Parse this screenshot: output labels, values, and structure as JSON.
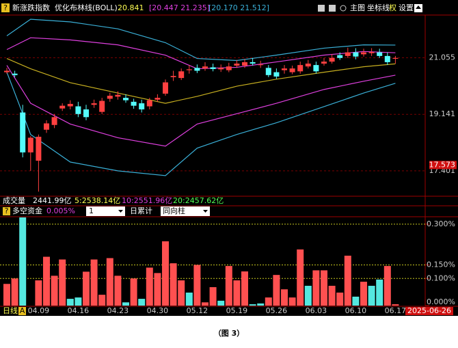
{
  "header": {
    "indicator_name": "新涨跌指数",
    "study": "优化布林线(BOLL)",
    "mid": "20.841",
    "inner_band": "[20.447  21.235]",
    "outer_band": "[20.170  21.512]",
    "menu": [
      "主图",
      "坐标线",
      "权",
      "设置"
    ]
  },
  "volume_row": {
    "label": "成交量",
    "total": "2441.99亿",
    "ma5": "5:2538.14亿",
    "ma10": "10:2551.96亿",
    "ma20": "20:2457.62亿"
  },
  "chart_data": [
    {
      "type": "candlestick",
      "log_scale": true,
      "ylim": [
        16.69,
        22.63
      ],
      "yticks": [
        21.055,
        19.141,
        17.401
      ],
      "price_marker": 17.573,
      "up_color": "#ff4040",
      "down_color": "#54fcfc",
      "ohlc": [
        [
          20.55,
          20.7,
          20.5,
          20.6
        ],
        [
          20.5,
          20.6,
          20.38,
          20.45
        ],
        [
          19.2,
          19.45,
          17.8,
          17.95
        ],
        [
          17.95,
          18.45,
          17.4,
          18.4
        ],
        [
          17.7,
          18.5,
          16.8,
          18.43
        ],
        [
          18.65,
          18.95,
          18.55,
          18.85
        ],
        [
          18.8,
          19.15,
          18.7,
          19.05
        ],
        [
          19.33,
          19.5,
          19.25,
          19.42
        ],
        [
          19.4,
          19.6,
          19.3,
          19.48
        ],
        [
          19.4,
          19.55,
          19.05,
          19.15
        ],
        [
          19.3,
          19.45,
          18.95,
          19.05
        ],
        [
          19.45,
          19.62,
          19.35,
          19.5
        ],
        [
          19.22,
          19.68,
          19.15,
          19.58
        ],
        [
          19.65,
          19.85,
          19.55,
          19.75
        ],
        [
          19.72,
          19.9,
          19.62,
          19.78
        ],
        [
          19.68,
          19.8,
          19.52,
          19.6
        ],
        [
          19.55,
          19.65,
          19.32,
          19.42
        ],
        [
          19.5,
          19.62,
          19.2,
          19.3
        ],
        [
          19.4,
          19.68,
          19.3,
          19.6
        ],
        [
          19.62,
          19.8,
          19.55,
          19.68
        ],
        [
          19.82,
          20.3,
          19.75,
          20.2
        ],
        [
          20.38,
          20.6,
          20.25,
          20.42
        ],
        [
          20.35,
          20.68,
          20.28,
          20.58
        ],
        [
          20.62,
          20.8,
          20.5,
          20.65
        ],
        [
          20.7,
          20.82,
          20.52,
          20.6
        ],
        [
          20.68,
          20.9,
          20.6,
          20.75
        ],
        [
          20.72,
          20.85,
          20.58,
          20.66
        ],
        [
          20.65,
          20.82,
          20.56,
          20.7
        ],
        [
          20.62,
          20.88,
          20.55,
          20.75
        ],
        [
          20.78,
          20.98,
          20.7,
          20.85
        ],
        [
          20.78,
          21.02,
          20.7,
          20.9
        ],
        [
          20.9,
          21.05,
          20.78,
          20.85
        ],
        [
          20.8,
          20.95,
          20.7,
          20.82
        ],
        [
          20.7,
          20.8,
          20.38,
          20.45
        ],
        [
          20.55,
          20.68,
          20.32,
          20.4
        ],
        [
          20.62,
          20.8,
          20.5,
          20.68
        ],
        [
          20.55,
          20.78,
          20.48,
          20.68
        ],
        [
          20.58,
          20.92,
          20.5,
          20.8
        ],
        [
          20.75,
          20.98,
          20.68,
          20.85
        ],
        [
          20.8,
          20.92,
          20.5,
          20.58
        ],
        [
          20.85,
          21.05,
          20.78,
          20.92
        ],
        [
          20.92,
          21.18,
          20.85,
          21.05
        ],
        [
          21.15,
          21.25,
          20.98,
          21.05
        ],
        [
          21.12,
          21.42,
          21.05,
          21.25
        ],
        [
          21.25,
          21.4,
          21.0,
          21.1
        ],
        [
          21.18,
          21.38,
          21.1,
          21.25
        ],
        [
          21.22,
          21.4,
          21.12,
          21.26
        ],
        [
          21.25,
          21.38,
          21.05,
          21.12
        ],
        [
          21.12,
          21.25,
          20.8,
          20.9
        ],
        [
          21.02,
          21.12,
          20.85,
          21.05
        ]
      ],
      "lines": [
        {
          "color": "#3ab0d8",
          "x": [
            0,
            3,
            8,
            14,
            20,
            24,
            29,
            34,
            40,
            45,
            49
          ],
          "values": [
            21.85,
            22.47,
            22.37,
            22.11,
            21.6,
            21.03,
            20.96,
            21.15,
            21.4,
            21.52,
            21.512
          ]
        },
        {
          "color": "#e040e0",
          "x": [
            0,
            3,
            8,
            14,
            20,
            24,
            29,
            34,
            40,
            45,
            49
          ],
          "values": [
            21.35,
            21.78,
            21.7,
            21.52,
            21.15,
            20.67,
            20.72,
            20.91,
            21.15,
            21.28,
            21.235
          ]
        },
        {
          "color": "#c8b020",
          "x": [
            0,
            3,
            8,
            14,
            20,
            24,
            29,
            34,
            40,
            45,
            49
          ],
          "values": [
            21.03,
            20.67,
            20.19,
            19.84,
            19.5,
            19.73,
            20.07,
            20.31,
            20.55,
            20.74,
            20.841
          ]
        },
        {
          "color": "#e040e0",
          "x": [
            0,
            3,
            8,
            14,
            20,
            24,
            29,
            34,
            40,
            45,
            49
          ],
          "values": [
            20.79,
            19.5,
            18.83,
            18.4,
            18.14,
            18.83,
            19.16,
            19.5,
            19.96,
            20.24,
            20.447
          ]
        },
        {
          "color": "#3ab0d8",
          "x": [
            0,
            3,
            8,
            14,
            20,
            24,
            29,
            34,
            40,
            45,
            49
          ],
          "values": [
            20.55,
            18.5,
            17.66,
            17.4,
            17.26,
            18.08,
            18.5,
            18.87,
            19.39,
            19.84,
            20.17
          ]
        }
      ]
    },
    {
      "type": "bar",
      "title": "多空资金",
      "current": "0.005%",
      "period": "1",
      "mode": "日累计",
      "style": "同向柱",
      "ylim": [
        0,
        0.325
      ],
      "yticks": [
        {
          "value": 0.3,
          "label": "0.300%"
        },
        {
          "value": 0.15,
          "label": "0.150%"
        },
        {
          "value": 0.1,
          "label": "0.100%"
        },
        {
          "value": 0,
          "label": "0.000%"
        }
      ],
      "categories": [
        null,
        null,
        null,
        null,
        "04.09",
        null,
        null,
        null,
        null,
        "04.16",
        null,
        null,
        null,
        null,
        "04.23",
        null,
        null,
        null,
        null,
        "04.30",
        null,
        null,
        null,
        null,
        "05.12",
        null,
        null,
        null,
        null,
        "05.19",
        null,
        null,
        null,
        null,
        "05.26",
        null,
        null,
        null,
        null,
        "06.03",
        null,
        null,
        null,
        null,
        "06.10",
        null,
        null,
        null,
        null,
        "06.17"
      ],
      "values": [
        0.08,
        0.1,
        0.325,
        0,
        0.093,
        0.18,
        0.11,
        0.17,
        0.025,
        0.03,
        0.125,
        0.17,
        0.04,
        0.175,
        0.11,
        0.012,
        0.1,
        0.025,
        0.14,
        0.12,
        0.237,
        0.156,
        0.093,
        0.048,
        0.15,
        0.012,
        0.068,
        0.018,
        0.146,
        0.093,
        0.126,
        0.005,
        0.008,
        0.03,
        0.113,
        0.06,
        0.03,
        0.207,
        0.073,
        0.13,
        0.13,
        0.073,
        0.048,
        0.184,
        0.033,
        0.088,
        0.073,
        0.096,
        0.146,
        0.005
      ],
      "colors": [
        "#ff5050",
        "#ff5050",
        "#54e8e0",
        "#ff5050",
        "#ff5050",
        "#ff5050",
        "#ff5050",
        "#ff5050",
        "#54e8e0",
        "#54e8e0",
        "#ff5050",
        "#ff5050",
        "#ff5050",
        "#ff5050",
        "#ff5050",
        "#54e8e0",
        "#ff5050",
        "#54e8e0",
        "#ff5050",
        "#ff5050",
        "#ff5050",
        "#ff5050",
        "#ff5050",
        "#54e8e0",
        "#ff5050",
        "#ff5050",
        "#ff5050",
        "#54e8e0",
        "#ff5050",
        "#ff5050",
        "#ff5050",
        "#54e8e0",
        "#54e8e0",
        "#ff5050",
        "#ff5050",
        "#ff5050",
        "#ff5050",
        "#ff5050",
        "#54e8e0",
        "#ff5050",
        "#ff5050",
        "#ff5050",
        "#ff5050",
        "#ff5050",
        "#54e8e0",
        "#ff5050",
        "#54e8e0",
        "#54e8e0",
        "#ff5050",
        "#ff5050"
      ],
      "period_label": "日线",
      "adjust_flag": "A",
      "cursor_date": "2025-06-26"
    }
  ],
  "caption": "（图 3）"
}
